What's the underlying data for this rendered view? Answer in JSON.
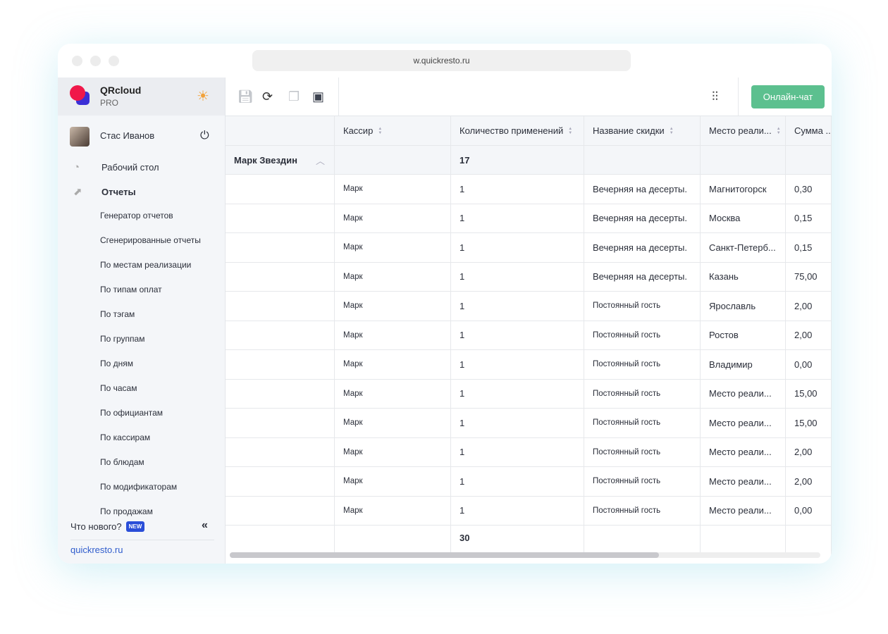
{
  "browser": {
    "url": "w.quickresto.ru"
  },
  "brand": {
    "title": "QRcloud",
    "plan": "PRO"
  },
  "user": {
    "name": "Стас Иванов"
  },
  "nav": {
    "dashboard": "Рабочий стол",
    "reports": "Отчеты",
    "sub": [
      "Генератор отчетов",
      "Сгенерированные отчеты",
      "По местам реализации",
      "По типам оплат",
      "По тэгам",
      "По группам",
      "По дням",
      "По часам",
      "По официантам",
      "По кассирам",
      "По блюдам",
      "По модификаторам",
      "По продажам"
    ]
  },
  "footer": {
    "whats_new": "Что нового?",
    "new_badge": "NEW",
    "site": "quickresto.ru"
  },
  "toolbar": {
    "chat": "Онлайн-чат"
  },
  "table": {
    "headers": [
      "",
      "Кассир",
      "Количество применений",
      "Название скидки",
      "Место реали...",
      "Сумма ..."
    ],
    "group": {
      "name": "Марк Звездин",
      "count": "17"
    },
    "rows": [
      [
        "",
        "Марк",
        "1",
        "Вечерняя на десерты.",
        "Магнитогорск",
        "0,30"
      ],
      [
        "",
        "Марк",
        "1",
        "Вечерняя на десерты.",
        "Москва",
        "0,15"
      ],
      [
        "",
        "Марк",
        "1",
        "Вечерняя на десерты.",
        "Санкт-Петерб...",
        "0,15"
      ],
      [
        "",
        "Марк",
        "1",
        "Вечерняя на десерты.",
        "Казань",
        "75,00"
      ],
      [
        "",
        "Марк",
        "1",
        "Постоянный гость",
        "Ярославль",
        "2,00"
      ],
      [
        "",
        "Марк",
        "1",
        "Постоянный гость",
        "Ростов",
        "2,00"
      ],
      [
        "",
        "Марк",
        "1",
        "Постоянный гость",
        "Владимир",
        "0,00"
      ],
      [
        "",
        "Марк",
        "1",
        "Постоянный гость",
        "Место реали...",
        "15,00"
      ],
      [
        "",
        "Марк",
        "1",
        "Постоянный гость",
        "Место реали...",
        "15,00"
      ],
      [
        "",
        "Марк",
        "1",
        "Постоянный гость",
        "Место реали...",
        "2,00"
      ],
      [
        "",
        "Марк",
        "1",
        "Постоянный гость",
        "Место реали...",
        "2,00"
      ],
      [
        "",
        "Марк",
        "1",
        "Постоянный гость",
        "Место реали...",
        "0,00"
      ]
    ],
    "total": "30"
  },
  "colors": {
    "accent": "#5cc08f",
    "link": "#2f5ccc",
    "badge": "#2a4ed8"
  }
}
